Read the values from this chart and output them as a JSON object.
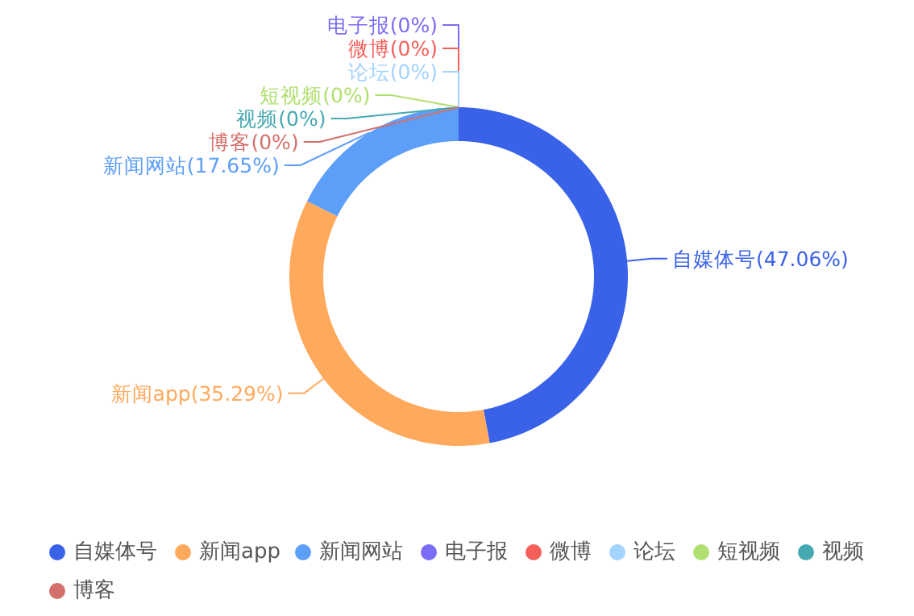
{
  "chart_data": {
    "type": "donut",
    "categories": [
      "自媒体号",
      "新闻app",
      "新闻网站",
      "电子报",
      "微博",
      null,
      "论坛",
      "短视频",
      "视频",
      "博客"
    ],
    "values": [
      47.06,
      35.29,
      17.65,
      0,
      0,
      0,
      0,
      0,
      0,
      0
    ],
    "colors": [
      "#3a62e8",
      "#ffa95c",
      "#5c9ef8",
      "#7b6cf6",
      "#f55f5a",
      "#4cc26b",
      "#a3d3ff",
      "#b0e070",
      "#46a8b0",
      "#d4706b"
    ],
    "value_labels": [
      "自媒体号(47.06%)",
      "新闻app(35.29%)",
      "新闻网站(17.65%)",
      "电子报(0%)",
      "微博(0%)",
      null,
      "论坛(0%)",
      "短视频(0%)",
      "视频(0%)",
      "博客(0%)"
    ],
    "legend": "bottom"
  }
}
